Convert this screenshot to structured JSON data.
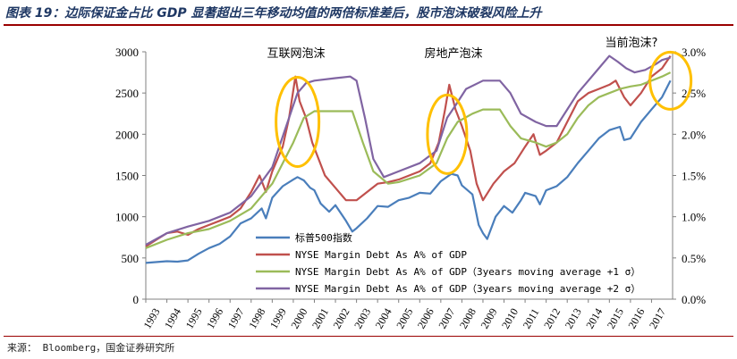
{
  "header": {
    "title": "图表 19：边际保证金占比 GDP 显著超出三年移动均值的两倍标准差后，股市泡沫破裂风险上升"
  },
  "footer": {
    "source": "来源： Bloomberg，国金证券研究所"
  },
  "colors": {
    "sp500": "#4a7ebb",
    "margin_pct": "#c0504d",
    "plus1sd": "#9bbb59",
    "plus2sd": "#8064a2",
    "highlight": "#ffc000",
    "rule": "#9a0000"
  },
  "chart_data": {
    "type": "line",
    "x_range": [
      1993,
      2018
    ],
    "xticks": [
      "1993",
      "1994",
      "1995",
      "1996",
      "1997",
      "1998",
      "1999",
      "2000",
      "2001",
      "2002",
      "2003",
      "2004",
      "2005",
      "2006",
      "2007",
      "2008",
      "2009",
      "2010",
      "2011",
      "2012",
      "2013",
      "2014",
      "2015",
      "2016",
      "2017"
    ],
    "y_left": {
      "range": [
        0,
        3000
      ],
      "ticks": [
        "0",
        "500",
        "1000",
        "1500",
        "2000",
        "2500",
        "3000"
      ]
    },
    "y_right": {
      "range": [
        0.0,
        3.0
      ],
      "ticks": [
        "0.0%",
        "0.5%",
        "1.0%",
        "1.5%",
        "2.0%",
        "2.5%",
        "3.0%"
      ]
    },
    "annotations": [
      {
        "text": "互联网泡沫",
        "x": 2000.0,
        "y_pct": 2.3
      },
      {
        "text": "房地产泡沫",
        "x": 2007.2,
        "y_pct": 2.1
      },
      {
        "text": "当前泡沫?",
        "x": 2017.5,
        "y_pct": 2.75
      }
    ],
    "series": [
      {
        "name": "标普500指数",
        "axis": "left",
        "color": "#4a7ebb",
        "points": [
          [
            1993,
            440
          ],
          [
            1994,
            460
          ],
          [
            1994.5,
            455
          ],
          [
            1995,
            470
          ],
          [
            1995.5,
            550
          ],
          [
            1996,
            620
          ],
          [
            1996.5,
            670
          ],
          [
            1997,
            760
          ],
          [
            1997.5,
            920
          ],
          [
            1998,
            980
          ],
          [
            1998.5,
            1100
          ],
          [
            1998.7,
            980
          ],
          [
            1999,
            1230
          ],
          [
            1999.5,
            1370
          ],
          [
            2000,
            1450
          ],
          [
            2000.2,
            1480
          ],
          [
            2000.5,
            1440
          ],
          [
            2000.8,
            1350
          ],
          [
            2001,
            1320
          ],
          [
            2001.3,
            1160
          ],
          [
            2001.7,
            1060
          ],
          [
            2002,
            1140
          ],
          [
            2002.5,
            950
          ],
          [
            2002.8,
            820
          ],
          [
            2003,
            860
          ],
          [
            2003.5,
            980
          ],
          [
            2004,
            1130
          ],
          [
            2004.5,
            1120
          ],
          [
            2005,
            1200
          ],
          [
            2005.5,
            1230
          ],
          [
            2006,
            1290
          ],
          [
            2006.5,
            1280
          ],
          [
            2007,
            1430
          ],
          [
            2007.5,
            1520
          ],
          [
            2007.8,
            1500
          ],
          [
            2008,
            1380
          ],
          [
            2008.5,
            1270
          ],
          [
            2008.8,
            900
          ],
          [
            2009,
            800
          ],
          [
            2009.2,
            730
          ],
          [
            2009.6,
            1000
          ],
          [
            2010,
            1130
          ],
          [
            2010.4,
            1050
          ],
          [
            2010.8,
            1200
          ],
          [
            2011,
            1290
          ],
          [
            2011.5,
            1250
          ],
          [
            2011.7,
            1150
          ],
          [
            2012,
            1320
          ],
          [
            2012.5,
            1370
          ],
          [
            2013,
            1480
          ],
          [
            2013.5,
            1650
          ],
          [
            2014,
            1800
          ],
          [
            2014.5,
            1950
          ],
          [
            2015,
            2050
          ],
          [
            2015.5,
            2090
          ],
          [
            2015.7,
            1930
          ],
          [
            2016,
            1950
          ],
          [
            2016.5,
            2150
          ],
          [
            2017,
            2300
          ],
          [
            2017.5,
            2450
          ],
          [
            2017.9,
            2650
          ]
        ]
      },
      {
        "name": "NYSE Margin Debt As A% of GDP",
        "axis": "right",
        "color": "#c0504d",
        "points": [
          [
            1993,
            0.64
          ],
          [
            1993.5,
            0.72
          ],
          [
            1994,
            0.8
          ],
          [
            1994.5,
            0.82
          ],
          [
            1995,
            0.78
          ],
          [
            1995.5,
            0.85
          ],
          [
            1996,
            0.9
          ],
          [
            1996.5,
            0.95
          ],
          [
            1997,
            1.0
          ],
          [
            1997.5,
            1.1
          ],
          [
            1998,
            1.3
          ],
          [
            1998.4,
            1.5
          ],
          [
            1998.7,
            1.3
          ],
          [
            1999,
            1.55
          ],
          [
            1999.5,
            1.85
          ],
          [
            1999.8,
            2.2
          ],
          [
            2000.1,
            2.7
          ],
          [
            2000.3,
            2.4
          ],
          [
            2000.6,
            2.2
          ],
          [
            2000.9,
            1.9
          ],
          [
            2001.2,
            1.7
          ],
          [
            2001.5,
            1.5
          ],
          [
            2002,
            1.35
          ],
          [
            2002.5,
            1.2
          ],
          [
            2003,
            1.2
          ],
          [
            2003.5,
            1.3
          ],
          [
            2004,
            1.4
          ],
          [
            2004.5,
            1.42
          ],
          [
            2005,
            1.45
          ],
          [
            2005.5,
            1.5
          ],
          [
            2006,
            1.55
          ],
          [
            2006.5,
            1.65
          ],
          [
            2006.9,
            1.9
          ],
          [
            2007.2,
            2.3
          ],
          [
            2007.4,
            2.6
          ],
          [
            2007.7,
            2.3
          ],
          [
            2008,
            2.1
          ],
          [
            2008.4,
            1.8
          ],
          [
            2008.7,
            1.4
          ],
          [
            2009,
            1.2
          ],
          [
            2009.5,
            1.4
          ],
          [
            2010,
            1.55
          ],
          [
            2010.5,
            1.65
          ],
          [
            2011,
            1.85
          ],
          [
            2011.4,
            2.0
          ],
          [
            2011.7,
            1.75
          ],
          [
            2012,
            1.8
          ],
          [
            2012.5,
            1.9
          ],
          [
            2013,
            2.15
          ],
          [
            2013.5,
            2.4
          ],
          [
            2014,
            2.5
          ],
          [
            2014.5,
            2.55
          ],
          [
            2015,
            2.6
          ],
          [
            2015.3,
            2.65
          ],
          [
            2015.7,
            2.45
          ],
          [
            2016,
            2.35
          ],
          [
            2016.5,
            2.5
          ],
          [
            2017,
            2.7
          ],
          [
            2017.5,
            2.8
          ],
          [
            2017.9,
            2.95
          ]
        ]
      },
      {
        "name": "NYSE Margin Debt As A% of GDP（3years moving average +1 σ）",
        "axis": "right",
        "color": "#9bbb59",
        "points": [
          [
            1993,
            0.62
          ],
          [
            1994,
            0.72
          ],
          [
            1995,
            0.8
          ],
          [
            1996,
            0.85
          ],
          [
            1997,
            0.95
          ],
          [
            1998,
            1.1
          ],
          [
            1999,
            1.4
          ],
          [
            2000,
            1.9
          ],
          [
            2000.5,
            2.2
          ],
          [
            2001,
            2.28
          ],
          [
            2002,
            2.28
          ],
          [
            2002.8,
            2.28
          ],
          [
            2003.3,
            1.9
          ],
          [
            2003.8,
            1.55
          ],
          [
            2004.5,
            1.4
          ],
          [
            2005,
            1.42
          ],
          [
            2006,
            1.5
          ],
          [
            2006.8,
            1.65
          ],
          [
            2007.3,
            1.95
          ],
          [
            2007.8,
            2.15
          ],
          [
            2008.5,
            2.25
          ],
          [
            2009,
            2.3
          ],
          [
            2009.8,
            2.3
          ],
          [
            2010.3,
            2.1
          ],
          [
            2010.8,
            1.95
          ],
          [
            2011.5,
            1.9
          ],
          [
            2012,
            1.85
          ],
          [
            2012.5,
            1.9
          ],
          [
            2013,
            2.0
          ],
          [
            2013.5,
            2.2
          ],
          [
            2014,
            2.35
          ],
          [
            2014.5,
            2.45
          ],
          [
            2015,
            2.5
          ],
          [
            2015.5,
            2.55
          ],
          [
            2016,
            2.58
          ],
          [
            2016.5,
            2.6
          ],
          [
            2017,
            2.65
          ],
          [
            2017.5,
            2.7
          ],
          [
            2017.9,
            2.75
          ]
        ]
      },
      {
        "name": "NYSE Margin Debt As A% of GDP（3years moving average +2 σ）",
        "axis": "right",
        "color": "#8064a2",
        "points": [
          [
            1993,
            0.66
          ],
          [
            1994,
            0.8
          ],
          [
            1995,
            0.88
          ],
          [
            1996,
            0.95
          ],
          [
            1997,
            1.05
          ],
          [
            1998,
            1.25
          ],
          [
            1999,
            1.6
          ],
          [
            1999.8,
            2.2
          ],
          [
            2000.2,
            2.5
          ],
          [
            2000.6,
            2.62
          ],
          [
            2001,
            2.65
          ],
          [
            2002,
            2.68
          ],
          [
            2002.7,
            2.7
          ],
          [
            2003,
            2.65
          ],
          [
            2003.4,
            2.2
          ],
          [
            2003.8,
            1.7
          ],
          [
            2004.3,
            1.48
          ],
          [
            2005,
            1.55
          ],
          [
            2006,
            1.65
          ],
          [
            2006.8,
            1.8
          ],
          [
            2007.3,
            2.2
          ],
          [
            2007.7,
            2.35
          ],
          [
            2008.2,
            2.55
          ],
          [
            2009,
            2.65
          ],
          [
            2009.8,
            2.65
          ],
          [
            2010.3,
            2.5
          ],
          [
            2010.8,
            2.25
          ],
          [
            2011.5,
            2.15
          ],
          [
            2012,
            2.1
          ],
          [
            2012.5,
            2.1
          ],
          [
            2013,
            2.3
          ],
          [
            2013.5,
            2.5
          ],
          [
            2014,
            2.65
          ],
          [
            2014.5,
            2.8
          ],
          [
            2015,
            2.95
          ],
          [
            2015.4,
            2.88
          ],
          [
            2015.8,
            2.8
          ],
          [
            2016.2,
            2.75
          ],
          [
            2016.7,
            2.78
          ],
          [
            2017.2,
            2.85
          ],
          [
            2017.5,
            2.9
          ],
          [
            2017.9,
            2.93
          ]
        ]
      }
    ]
  }
}
